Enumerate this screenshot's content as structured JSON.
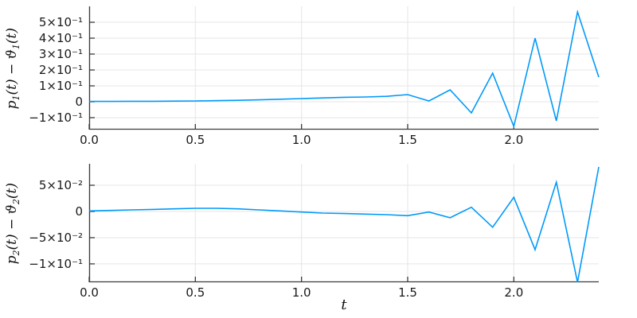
{
  "figure": {
    "background": "#ffffff",
    "series_color": "#009af9",
    "grid_color": "#e5e5e5",
    "spine_color": "#3a3a3a",
    "tick_color": "#3a3a3a",
    "text_color": "#191919"
  },
  "chart_data": [
    {
      "type": "line",
      "title": "",
      "xlabel": "",
      "ylabel": "p_1(t) − ϑ_1(t)",
      "legend": "none",
      "grid": true,
      "x": [
        0.0,
        0.1,
        0.2,
        0.3,
        0.4,
        0.5,
        0.6,
        0.7,
        0.8,
        0.9,
        1.0,
        1.1,
        1.2,
        1.3,
        1.4,
        1.5,
        1.6,
        1.7,
        1.8,
        1.9,
        2.0,
        2.1,
        2.2,
        2.3,
        2.4
      ],
      "y": [
        0.002,
        0.002,
        0.003,
        0.003,
        0.004,
        0.005,
        0.007,
        0.009,
        0.012,
        0.016,
        0.02,
        0.024,
        0.028,
        0.03,
        0.034,
        0.045,
        0.005,
        0.075,
        -0.07,
        0.18,
        -0.155,
        0.4,
        -0.12,
        0.565,
        0.155
      ],
      "xlim": [
        0.0,
        2.4
      ],
      "ylim": [
        -0.175,
        0.6
      ],
      "xticks": {
        "values": [
          0.0,
          0.5,
          1.0,
          1.5,
          2.0
        ],
        "labels": [
          "0.0",
          "0.5",
          "1.0",
          "1.5",
          "2.0"
        ]
      },
      "yticks": {
        "values": [
          0.5,
          0.4,
          0.3,
          0.2,
          0.1,
          0.0,
          -0.1
        ],
        "labels": [
          "5×10⁻¹",
          "4×10⁻¹",
          "3×10⁻¹",
          "2×10⁻¹",
          "1×10⁻¹",
          "0",
          "−1×10⁻¹"
        ]
      }
    },
    {
      "type": "line",
      "title": "",
      "xlabel": "t",
      "ylabel": "p_2(t) − ϑ_2(t)",
      "legend": "none",
      "grid": true,
      "x": [
        0.0,
        0.1,
        0.2,
        0.3,
        0.4,
        0.5,
        0.6,
        0.7,
        0.8,
        0.9,
        1.0,
        1.1,
        1.2,
        1.3,
        1.4,
        1.5,
        1.6,
        1.7,
        1.8,
        1.9,
        2.0,
        2.1,
        2.2,
        2.3,
        2.4
      ],
      "y": [
        0.001,
        0.002,
        0.003,
        0.004,
        0.005,
        0.006,
        0.006,
        0.005,
        0.003,
        0.001,
        -0.001,
        -0.003,
        -0.004,
        -0.005,
        -0.006,
        -0.008,
        -0.001,
        -0.012,
        0.008,
        -0.03,
        0.027,
        -0.073,
        0.056,
        -0.135,
        0.085
      ],
      "xlim": [
        0.0,
        2.4
      ],
      "ylim": [
        -0.135,
        0.091
      ],
      "xticks": {
        "values": [
          0.0,
          0.5,
          1.0,
          1.5,
          2.0
        ],
        "labels": [
          "0.0",
          "0.5",
          "1.0",
          "1.5",
          "2.0"
        ]
      },
      "yticks": {
        "values": [
          0.05,
          0.0,
          -0.05,
          -0.1
        ],
        "labels": [
          "5×10⁻²",
          "0",
          "−5×10⁻²",
          "−1×10⁻¹"
        ]
      }
    }
  ]
}
